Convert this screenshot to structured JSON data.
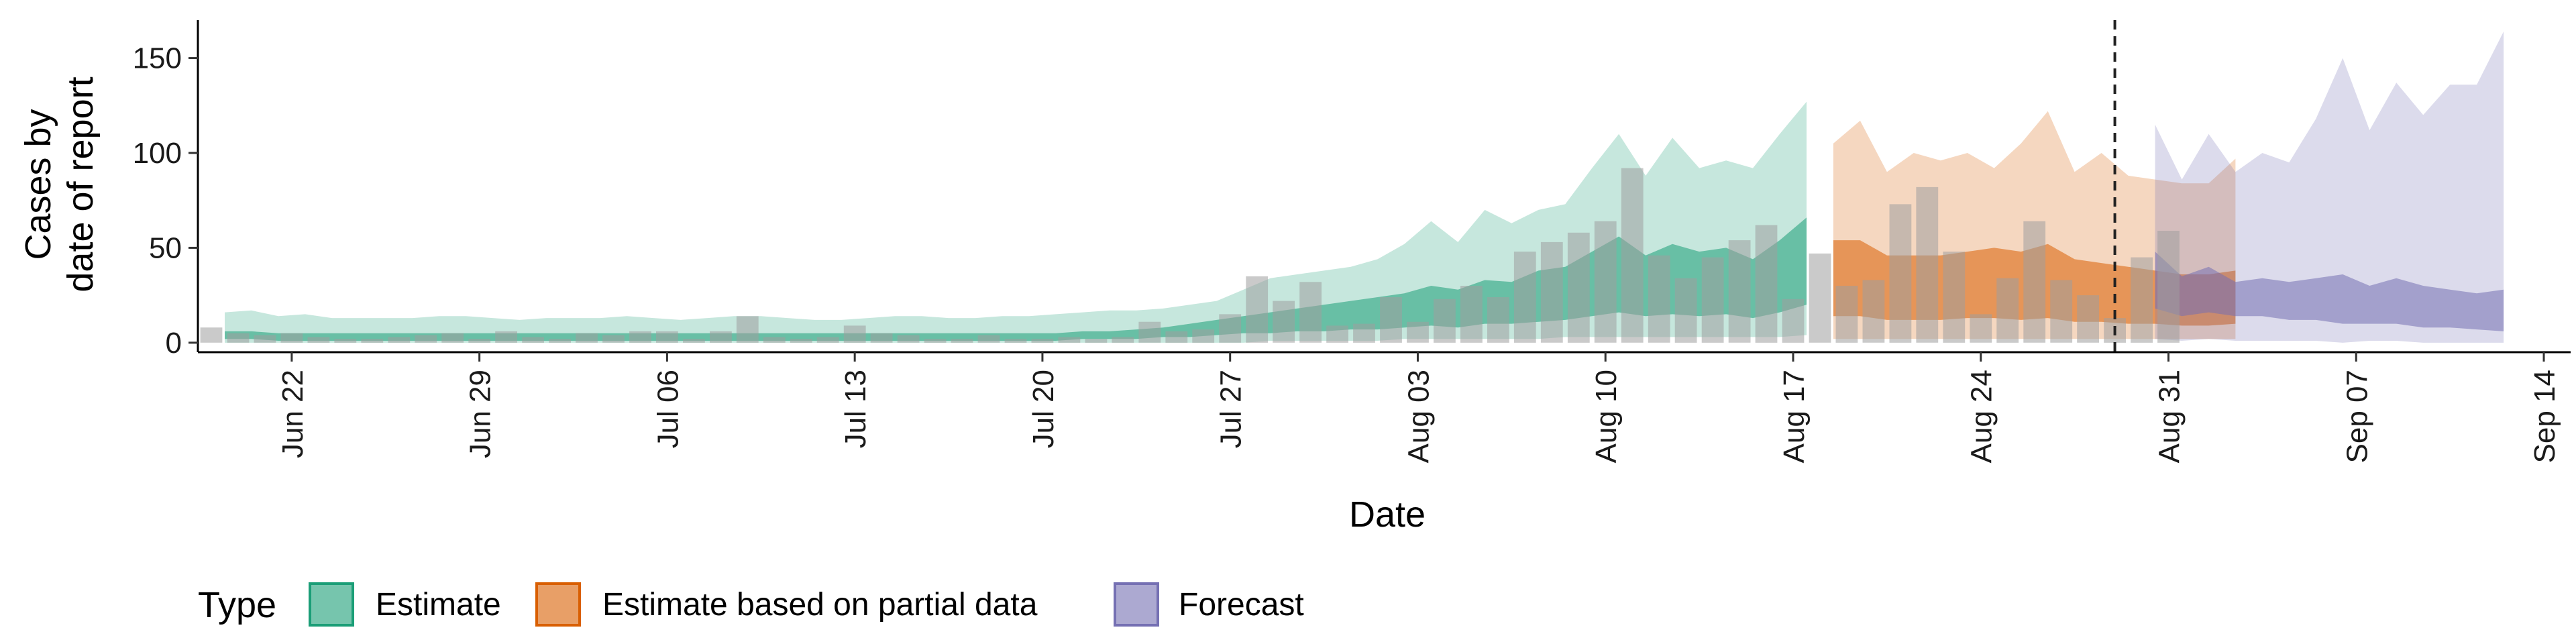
{
  "chart_data": {
    "type": "area",
    "title": "",
    "xlabel": "Date",
    "ylabel_lines": [
      "Cases by",
      "date of report"
    ],
    "ylim": [
      -5,
      170
    ],
    "yticks": [
      0,
      50,
      100,
      150
    ],
    "start_date": "Jun 19",
    "xlim_days": [
      -0.5,
      88
    ],
    "xticks": [
      {
        "label": "Jun 22",
        "day": 3
      },
      {
        "label": "Jun 29",
        "day": 10
      },
      {
        "label": "Jul 06",
        "day": 17
      },
      {
        "label": "Jul 13",
        "day": 24
      },
      {
        "label": "Jul 20",
        "day": 31
      },
      {
        "label": "Jul 27",
        "day": 38
      },
      {
        "label": "Aug 03",
        "day": 45
      },
      {
        "label": "Aug 10",
        "day": 52
      },
      {
        "label": "Aug 17",
        "day": 59
      },
      {
        "label": "Aug 24",
        "day": 66
      },
      {
        "label": "Aug 31",
        "day": 73
      },
      {
        "label": "Sep 07",
        "day": 80
      },
      {
        "label": "Sep 14",
        "day": 87
      }
    ],
    "vline_day": 71,
    "reported_cases": {
      "start_day": 0,
      "values": [
        8,
        5,
        4,
        5,
        3,
        2,
        2,
        3,
        4,
        5,
        2,
        6,
        3,
        2,
        5,
        4,
        6,
        6,
        2,
        6,
        14,
        3,
        2,
        3,
        9,
        5,
        4,
        2,
        2,
        4,
        2,
        2,
        3,
        2,
        3,
        11,
        6,
        7,
        15,
        35,
        22,
        32,
        9,
        10,
        24,
        11,
        23,
        30,
        24,
        48,
        53,
        58,
        64,
        92,
        46,
        34,
        45,
        54,
        62,
        23,
        47,
        30,
        33,
        73,
        82,
        48,
        15,
        34,
        64,
        33,
        25,
        13,
        45,
        59
      ]
    },
    "series": [
      {
        "name": "Estimate",
        "color": "#1b9e77",
        "start_day": 0.5,
        "outer_upper": [
          16,
          17,
          14,
          15,
          13,
          13,
          13,
          13,
          14,
          14,
          13,
          12,
          13,
          13,
          13,
          14,
          13,
          12,
          13,
          14,
          14,
          13,
          12,
          12,
          13,
          14,
          14,
          13,
          13,
          14,
          14,
          15,
          16,
          17,
          17,
          18,
          20,
          22,
          28,
          34,
          36,
          38,
          40,
          44,
          52,
          64,
          53,
          70,
          63,
          70,
          73,
          92,
          110,
          88,
          108,
          92,
          96,
          92,
          110,
          127
        ],
        "inner_upper": [
          6,
          6,
          5,
          5,
          5,
          5,
          5,
          5,
          5,
          5,
          5,
          5,
          5,
          5,
          5,
          5,
          5,
          5,
          5,
          5,
          5,
          5,
          5,
          5,
          5,
          5,
          5,
          5,
          5,
          5,
          5,
          5,
          6,
          6,
          7,
          8,
          10,
          12,
          14,
          16,
          18,
          20,
          22,
          24,
          26,
          30,
          28,
          33,
          32,
          38,
          40,
          48,
          56,
          46,
          52,
          48,
          50,
          44,
          54,
          66
        ],
        "inner_lower": [
          2,
          2,
          1,
          1,
          1,
          1,
          1,
          1,
          1,
          1,
          1,
          1,
          1,
          1,
          1,
          1,
          1,
          1,
          1,
          1,
          1,
          1,
          1,
          1,
          1,
          1,
          1,
          1,
          1,
          1,
          1,
          1,
          2,
          2,
          2,
          3,
          3,
          4,
          5,
          5,
          6,
          6,
          7,
          7,
          8,
          9,
          8,
          10,
          10,
          11,
          12,
          14,
          16,
          14,
          15,
          14,
          15,
          13,
          16,
          20
        ],
        "outer_lower": [
          0,
          0,
          0,
          0,
          0,
          0,
          0,
          0,
          0,
          0,
          0,
          0,
          0,
          0,
          0,
          0,
          0,
          0,
          0,
          0,
          0,
          0,
          0,
          0,
          0,
          0,
          0,
          0,
          0,
          0,
          0,
          0,
          0,
          0,
          0,
          0,
          0,
          0,
          0,
          1,
          1,
          1,
          1,
          1,
          2,
          2,
          2,
          2,
          2,
          2,
          3,
          3,
          3,
          3,
          3,
          3,
          3,
          3,
          3,
          4
        ]
      },
      {
        "name": "Estimate based on partial data",
        "color": "#d95f02",
        "start_day": 60.5,
        "outer_upper": [
          105,
          117,
          90,
          100,
          96,
          100,
          92,
          105,
          122,
          90,
          100,
          88,
          86,
          84,
          84,
          97
        ],
        "inner_upper": [
          54,
          54,
          46,
          46,
          46,
          48,
          50,
          48,
          52,
          44,
          42,
          40,
          38,
          36,
          36,
          38
        ],
        "inner_lower": [
          14,
          14,
          12,
          12,
          12,
          13,
          13,
          12,
          13,
          11,
          11,
          10,
          10,
          9,
          9,
          10
        ],
        "outer_lower": [
          2,
          2,
          2,
          2,
          2,
          2,
          2,
          2,
          2,
          2,
          2,
          2,
          2,
          2,
          2,
          2
        ]
      },
      {
        "name": "Forecast",
        "color": "#7570b3",
        "start_day": 72.5,
        "outer_upper": [
          115,
          86,
          110,
          90,
          100,
          95,
          118,
          150,
          112,
          137,
          120,
          136,
          136,
          164
        ],
        "inner_upper": [
          48,
          35,
          40,
          32,
          34,
          32,
          34,
          36,
          30,
          34,
          30,
          28,
          26,
          28
        ],
        "inner_lower": [
          18,
          14,
          16,
          14,
          14,
          12,
          12,
          10,
          10,
          10,
          8,
          8,
          7,
          6
        ],
        "outer_lower": [
          2,
          1,
          2,
          1,
          1,
          1,
          1,
          0,
          1,
          1,
          0,
          0,
          0,
          0
        ]
      }
    ],
    "legend": {
      "title": "Type",
      "position": "bottom-left",
      "items": [
        "Estimate",
        "Estimate based on partial data",
        "Forecast"
      ]
    }
  }
}
